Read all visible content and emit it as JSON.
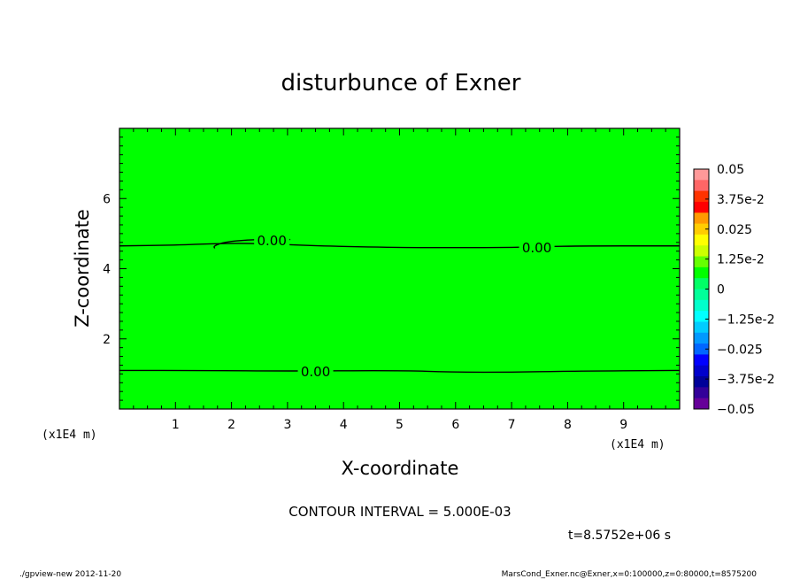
{
  "chart_data": {
    "type": "contour",
    "title": "disturbunce of Exner",
    "xlabel": "X-coordinate",
    "ylabel": "Z-coordinate",
    "x_scale_note": "(x1E4 m)",
    "y_scale_note": "(x1E4 m)",
    "xlim": [
      0,
      10
    ],
    "ylim": [
      0,
      8
    ],
    "x_ticks": [
      1,
      2,
      3,
      4,
      5,
      6,
      7,
      8,
      9
    ],
    "y_ticks": [
      2,
      4,
      6
    ],
    "field_color": "#00ff00",
    "contours": [
      {
        "level": 0.0,
        "label": "0.00",
        "points": [
          [
            0,
            4.65
          ],
          [
            1.0,
            4.67
          ],
          [
            1.75,
            4.72
          ],
          [
            2.5,
            4.72
          ],
          [
            3.5,
            4.65
          ],
          [
            5.0,
            4.6
          ],
          [
            6.0,
            4.6
          ],
          [
            7.0,
            4.6
          ],
          [
            8.0,
            4.65
          ],
          [
            10.0,
            4.65
          ]
        ],
        "label_at": [
          7.45,
          4.62
        ]
      },
      {
        "level": 0.0,
        "label": "0.00",
        "points": [
          [
            1.7,
            4.58
          ],
          [
            1.68,
            4.65
          ],
          [
            1.9,
            4.77
          ],
          [
            2.4,
            4.83
          ],
          [
            3.05,
            4.83
          ]
        ],
        "label_at": [
          2.72,
          4.82
        ]
      },
      {
        "level": 0.0,
        "label": "0.00",
        "points": [
          [
            0,
            1.1
          ],
          [
            1.5,
            1.1
          ],
          [
            3.0,
            1.08
          ],
          [
            5.0,
            1.1
          ],
          [
            6.0,
            1.05
          ],
          [
            7.0,
            1.05
          ],
          [
            8.0,
            1.08
          ],
          [
            10.0,
            1.1
          ]
        ],
        "label_at": [
          3.5,
          1.08
        ]
      }
    ],
    "colorbar": {
      "labels": [
        "0.05",
        "3.75e-2",
        "0.025",
        "1.25e-2",
        "0",
        "−1.25e-2",
        "−0.025",
        "−3.75e-2",
        "−0.05"
      ],
      "bands": [
        "#ff9999",
        "#ff6666",
        "#ff3300",
        "#ff0000",
        "#ff9900",
        "#ffcc00",
        "#ffff00",
        "#ccff00",
        "#66ff00",
        "#00ff00",
        "#00ff66",
        "#00ff99",
        "#00ffcc",
        "#00ffff",
        "#00ccff",
        "#0099ff",
        "#0066ff",
        "#0000ff",
        "#0000cc",
        "#000099",
        "#330099",
        "#660099"
      ]
    },
    "contour_interval_text": "CONTOUR INTERVAL = 5.000E-03",
    "time_text": "t=8.5752e+06 s"
  },
  "footer": {
    "left": "./gpview-new  2012-11-20",
    "right": "MarsCond_Exner.nc@Exner,x=0:100000,z=0:80000,t=8575200"
  }
}
